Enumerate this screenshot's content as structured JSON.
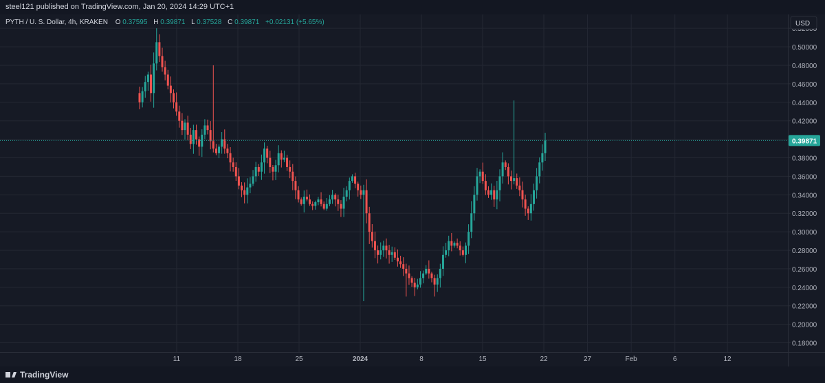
{
  "header": {
    "publish_text": "steel121 published on TradingView.com, Jan 20, 2024 14:29 UTC+1"
  },
  "legend": {
    "symbol": "PYTH / U. S. Dollar, 4h, KRAKEN",
    "o_label": "O",
    "o_value": "0.37595",
    "h_label": "H",
    "h_value": "0.39871",
    "l_label": "L",
    "l_value": "0.37528",
    "c_label": "C",
    "c_value": "0.39871",
    "change": "+0.02131 (+5.65%)"
  },
  "currency": "USD",
  "colors": {
    "up": "#26a69a",
    "down": "#ef5350",
    "price_line": "#26a69a",
    "price_badge": "#26a69a",
    "grid": "#242833"
  },
  "footer": {
    "brand": "TradingView"
  },
  "chart_data": {
    "type": "candlestick",
    "symbol": "PYTH/USD",
    "interval": "4h",
    "exchange": "KRAKEN",
    "last_price": 0.39871,
    "last_price_label": "0.39871",
    "ylim": [
      0.17,
      0.535
    ],
    "y_ticks": [
      "0.52000",
      "0.50000",
      "0.48000",
      "0.46000",
      "0.44000",
      "0.42000",
      "0.40000",
      "0.38000",
      "0.36000",
      "0.34000",
      "0.32000",
      "0.30000",
      "0.28000",
      "0.26000",
      "0.24000",
      "0.22000",
      "0.20000",
      "0.18000"
    ],
    "x_ticks": [
      {
        "label": "11",
        "day": 11
      },
      {
        "label": "18",
        "day": 18
      },
      {
        "label": "25",
        "day": 25
      },
      {
        "label": "2024",
        "day": 32
      },
      {
        "label": "8",
        "day": 39
      },
      {
        "label": "15",
        "day": 46
      },
      {
        "label": "22",
        "day": 53
      },
      {
        "label": "27",
        "day": 58
      },
      {
        "label": "Feb",
        "day": 63
      },
      {
        "label": "6",
        "day": 68
      },
      {
        "label": "12",
        "day": 74
      }
    ],
    "grid": true,
    "closes": [
      0.44,
      0.452,
      0.462,
      0.47,
      0.45,
      0.482,
      0.505,
      0.49,
      0.478,
      0.47,
      0.458,
      0.45,
      0.44,
      0.43,
      0.42,
      0.41,
      0.418,
      0.405,
      0.395,
      0.41,
      0.4,
      0.392,
      0.405,
      0.415,
      0.41,
      0.398,
      0.39,
      0.385,
      0.392,
      0.4,
      0.39,
      0.385,
      0.375,
      0.37,
      0.36,
      0.35,
      0.345,
      0.34,
      0.348,
      0.352,
      0.36,
      0.37,
      0.365,
      0.375,
      0.39,
      0.38,
      0.37,
      0.365,
      0.372,
      0.385,
      0.378,
      0.38,
      0.37,
      0.365,
      0.355,
      0.345,
      0.335,
      0.33,
      0.338,
      0.335,
      0.33,
      0.328,
      0.332,
      0.335,
      0.33,
      0.325,
      0.33,
      0.335,
      0.34,
      0.335,
      0.33,
      0.325,
      0.338,
      0.345,
      0.355,
      0.36,
      0.352,
      0.345,
      0.34,
      0.345,
      0.32,
      0.3,
      0.29,
      0.28,
      0.275,
      0.28,
      0.285,
      0.28,
      0.275,
      0.278,
      0.272,
      0.268,
      0.265,
      0.26,
      0.255,
      0.25,
      0.245,
      0.24,
      0.243,
      0.25,
      0.255,
      0.26,
      0.255,
      0.25,
      0.243,
      0.25,
      0.26,
      0.275,
      0.28,
      0.29,
      0.285,
      0.288,
      0.285,
      0.28,
      0.275,
      0.285,
      0.3,
      0.32,
      0.34,
      0.36,
      0.365,
      0.355,
      0.345,
      0.34,
      0.345,
      0.335,
      0.345,
      0.36,
      0.375,
      0.37,
      0.36,
      0.355,
      0.358,
      0.35,
      0.345,
      0.335,
      0.325,
      0.32,
      0.33,
      0.345,
      0.36,
      0.375,
      0.385,
      0.39871
    ],
    "notable_wicks": [
      {
        "index": 6,
        "high": 0.52
      },
      {
        "index": 26,
        "high": 0.48
      },
      {
        "index": 79,
        "low": 0.225
      },
      {
        "index": 94,
        "low": 0.23
      },
      {
        "index": 104,
        "low": 0.23
      },
      {
        "index": 132,
        "high": 0.442
      },
      {
        "index": 144,
        "low": 0.305
      }
    ]
  }
}
